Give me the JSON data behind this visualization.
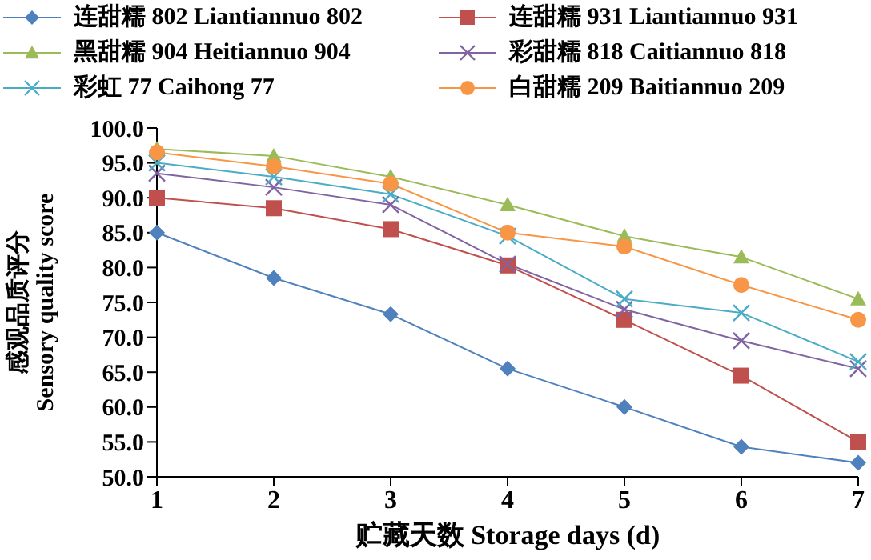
{
  "chart_data": {
    "type": "line",
    "xlabel": "贮藏天数 Storage days (d)",
    "ylabel": "感观品质评分\nSensory quality score",
    "categories": [
      "1",
      "2",
      "3",
      "4",
      "5",
      "6",
      "7"
    ],
    "series": [
      {
        "name": "连甜糯 802 Liantiannuo 802",
        "color": "#4f81bd",
        "marker": "diamond",
        "values": [
          85,
          78.5,
          73.3,
          65.5,
          60,
          54.3,
          52
        ]
      },
      {
        "name": "连甜糯 931 Liantiannuo 931",
        "color": "#c0504d",
        "marker": "square",
        "values": [
          90,
          88.5,
          85.5,
          80.3,
          72.5,
          64.5,
          55
        ]
      },
      {
        "name": "黑甜糯 904 Heitiannuo 904",
        "color": "#9bbb59",
        "marker": "triangle",
        "values": [
          97,
          96,
          93,
          89,
          84.5,
          81.5,
          75.5
        ]
      },
      {
        "name": "彩甜糯 818 Caitiannuo 818",
        "color": "#8064a2",
        "marker": "cross",
        "values": [
          93.5,
          91.5,
          89,
          80.5,
          74,
          69.5,
          65.5
        ]
      },
      {
        "name": "彩虹 77 Caihong 77",
        "color": "#4bacc6",
        "marker": "cross",
        "values": [
          95,
          93,
          90.5,
          84.5,
          75.5,
          73.5,
          66.5
        ]
      },
      {
        "name": "白甜糯 209 Baitiannuo 209",
        "color": "#f79646",
        "marker": "circle",
        "values": [
          96.5,
          94.5,
          92,
          85,
          83,
          77.5,
          72.5
        ]
      }
    ],
    "ylim": [
      50,
      100
    ],
    "yticks": [
      {
        "value": 50,
        "label": "50.0"
      },
      {
        "value": 55,
        "label": "55.0"
      },
      {
        "value": 60,
        "label": "60.0"
      },
      {
        "value": 65,
        "label": "65.0"
      },
      {
        "value": 70,
        "label": "70.0"
      },
      {
        "value": 75,
        "label": "75.0"
      },
      {
        "value": 80,
        "label": "80.0"
      },
      {
        "value": 85,
        "label": "85.0"
      },
      {
        "value": 90,
        "label": "90.0"
      },
      {
        "value": 95,
        "label": "95.0"
      },
      {
        "value": 100,
        "label": "100.0"
      }
    ],
    "grid": false,
    "legend": "top"
  }
}
